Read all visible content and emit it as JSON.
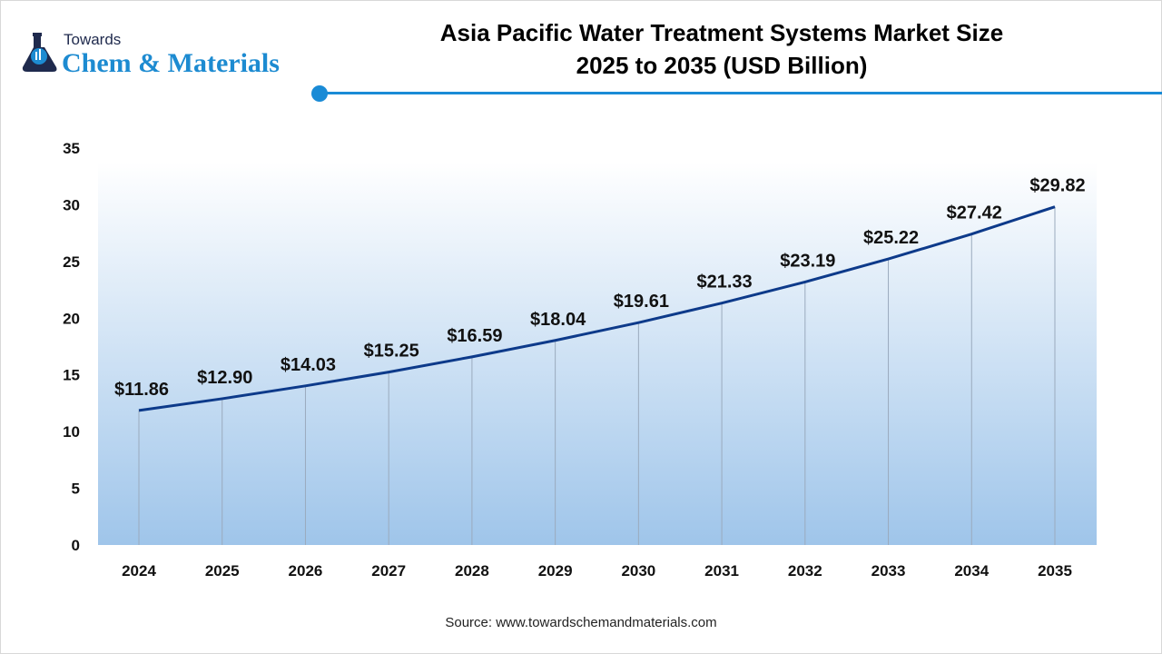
{
  "logo": {
    "line1": "Towards",
    "line2": "Chem & Materials"
  },
  "header": {
    "title_line1": "Asia Pacific Water Treatment Systems Market Size",
    "title_line2": "2025 to 2035 (USD Billion)"
  },
  "colors": {
    "accent": "#1a8bd6",
    "line": "#0d3a8a",
    "gradient_top": "#ffffff",
    "gradient_bottom": "#9fc5ea"
  },
  "chart_data": {
    "type": "line",
    "title": "Asia Pacific Water Treatment Systems Market Size 2025 to 2035 (USD Billion)",
    "categories": [
      "2024",
      "2025",
      "2026",
      "2027",
      "2028",
      "2029",
      "2030",
      "2031",
      "2032",
      "2033",
      "2034",
      "2035"
    ],
    "values": [
      11.86,
      12.9,
      14.03,
      15.25,
      16.59,
      18.04,
      19.61,
      21.33,
      23.19,
      25.22,
      27.42,
      29.82
    ],
    "data_labels": [
      "$11.86",
      "$12.90",
      "$14.03",
      "$15.25",
      "$16.59",
      "$18.04",
      "$19.61",
      "$21.33",
      "$23.19",
      "$25.22",
      "$27.42",
      "$29.82"
    ],
    "yticks": [
      "0",
      "5",
      "10",
      "15",
      "20",
      "25",
      "30",
      "35"
    ],
    "ylim": [
      0,
      35
    ],
    "xlabel": "",
    "ylabel": "",
    "grid": "vertical drop lines",
    "legend": "none"
  },
  "footer": {
    "source": "Source: www.towardschemandmaterials.com"
  }
}
